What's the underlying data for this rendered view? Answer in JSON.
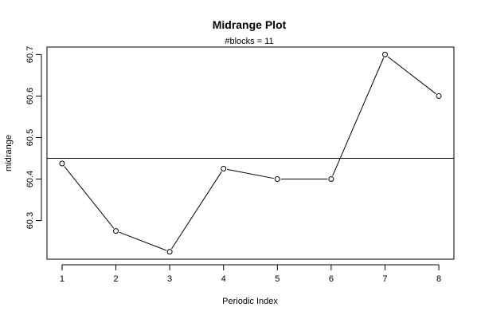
{
  "chart_data": {
    "type": "line",
    "title": "Midrange Plot",
    "subtitle": "#blocks =  11",
    "xlabel": "Periodic Index",
    "ylabel": "midrange",
    "x": [
      1,
      2,
      3,
      4,
      5,
      6,
      7,
      8
    ],
    "y": [
      60.4375,
      60.275,
      60.225,
      60.425,
      60.4,
      60.4,
      60.7,
      60.6
    ],
    "x_ticks": [
      "1",
      "2",
      "3",
      "4",
      "5",
      "6",
      "7",
      "8"
    ],
    "y_ticks": [
      "60.3",
      "60.4",
      "60.5",
      "60.6",
      "60.7"
    ],
    "reference_line": 60.45,
    "xlim": [
      0.72,
      8.28
    ],
    "ylim": [
      60.207,
      60.718
    ],
    "marker": "open-circle",
    "grid": false,
    "legend": "none"
  }
}
